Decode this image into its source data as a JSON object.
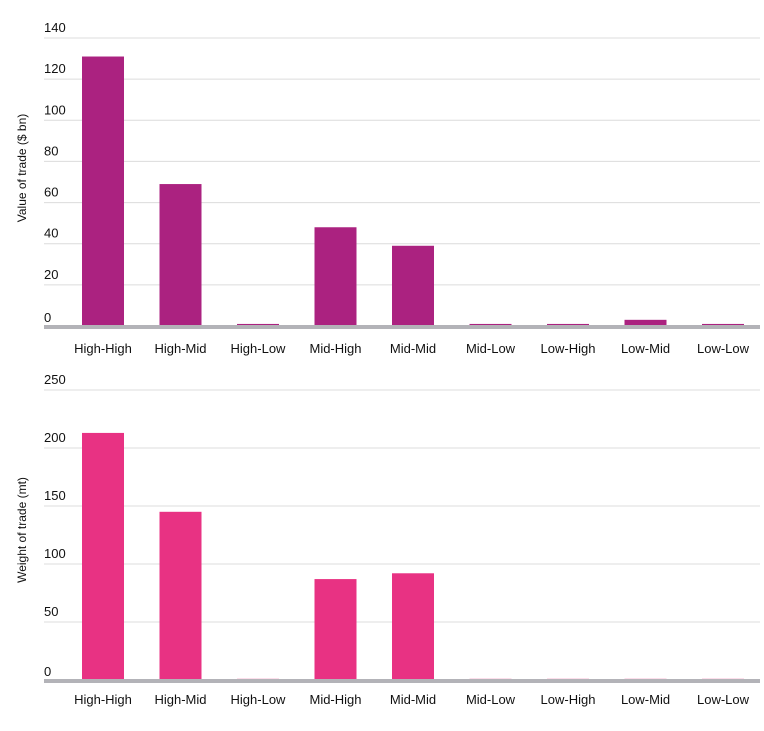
{
  "chart_data": [
    {
      "type": "bar",
      "categories": [
        "High-High",
        "High-Mid",
        "High-Low",
        "Mid-High",
        "Mid-Mid",
        "Mid-Low",
        "Low-High",
        "Low-Mid",
        "Low-Low"
      ],
      "values": [
        131,
        69,
        1,
        48,
        39,
        1,
        1,
        3,
        1
      ],
      "xlabel": "",
      "ylabel": "Value of trade ($ bn)",
      "ylim": [
        0,
        140
      ],
      "yticks": [
        0,
        20,
        40,
        60,
        80,
        100,
        120,
        140
      ],
      "color": "#ab2280",
      "grid": true
    },
    {
      "type": "bar",
      "categories": [
        "High-High",
        "High-Mid",
        "High-Low",
        "Mid-High",
        "Mid-Mid",
        "Mid-Low",
        "Low-High",
        "Low-Mid",
        "Low-Low"
      ],
      "values": [
        213,
        145,
        1,
        87,
        92,
        1,
        1,
        1,
        1
      ],
      "xlabel": "",
      "ylabel": "Weight of trade (mt)",
      "ylim": [
        0,
        250
      ],
      "yticks": [
        0,
        50,
        100,
        150,
        200,
        250
      ],
      "color": "#e83283",
      "grid": true
    }
  ]
}
